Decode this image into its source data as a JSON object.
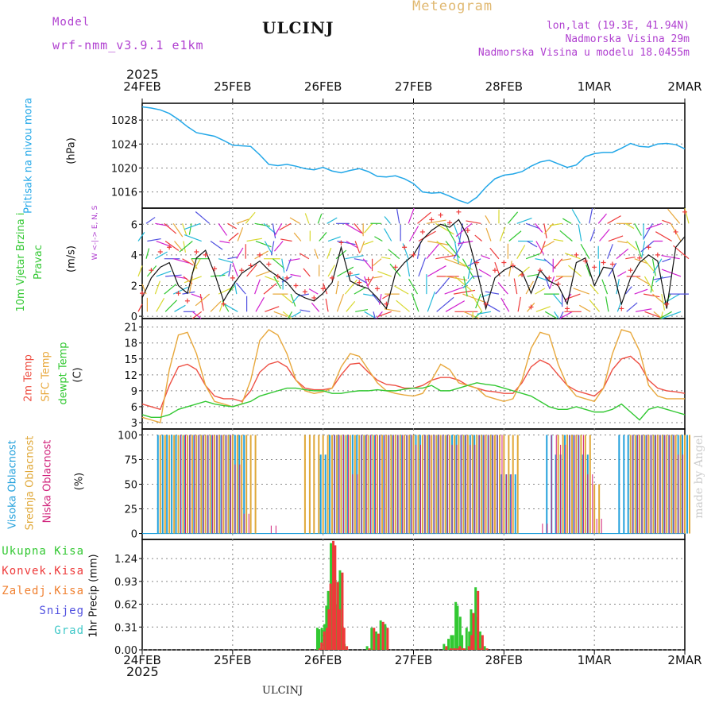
{
  "header": {
    "model_label": "Model",
    "model_name": "wrf-nmm_v3.9.1 e1km",
    "station": "ULCINJ",
    "title": "Meteogram",
    "lonlat": "lon,lat (19.3E, 41.94N)",
    "altitude": "Nadmorska Visina 29m",
    "model_altitude": "Nadmorska Visina u modelu 18.0455m",
    "bottom_station": "ULCINJ",
    "credit": "made by Angel"
  },
  "colors": {
    "pressure": "#22a7e8",
    "temp2m": "#ee5044",
    "sfc": "#e8a83c",
    "dewpt": "#32c832",
    "high_cloud": "#22a0dc",
    "mid_cloud": "#e0a838",
    "low_cloud": "#d0207a",
    "total_precip": "#32c832",
    "conv_precip": "#ee3a3a",
    "frozen_precip": "#f08030",
    "snow": "#5050e0",
    "graupel": "#40c8c8",
    "wind_label": "#32c832",
    "title": "#e0b870",
    "info": "#b040d0"
  },
  "time_axis": {
    "year": "2025",
    "labels": [
      "24FEB",
      "25FEB",
      "26FEB",
      "27FEB",
      "28FEB",
      "1MAR",
      "2MAR"
    ]
  },
  "chart_data": [
    {
      "type": "line",
      "name": "pressure",
      "ylabel_left": "Pritisak na nivou mora",
      "ylabel": "(hPa)",
      "yticks": [
        1016,
        1020,
        1024,
        1028
      ],
      "ylim": [
        1013.3,
        1030.8
      ],
      "grid": true,
      "x": [
        0,
        0.1,
        0.2,
        0.3,
        0.4,
        0.5,
        0.6,
        0.7,
        0.8,
        0.9,
        1.0,
        1.1,
        1.2,
        1.3,
        1.4,
        1.5,
        1.6,
        1.7,
        1.8,
        1.9,
        2.0,
        2.1,
        2.2,
        2.3,
        2.4,
        2.5,
        2.6,
        2.7,
        2.8,
        2.9,
        3.0,
        3.1,
        3.2,
        3.3,
        3.4,
        3.5,
        3.6,
        3.7,
        3.8,
        3.9,
        4.0,
        4.1,
        4.2,
        4.3,
        4.4,
        4.5,
        4.6,
        4.7,
        4.8,
        4.9,
        5.0,
        5.1,
        5.2,
        5.3,
        5.4,
        5.5,
        5.6,
        5.7,
        5.8,
        5.9,
        6.0
      ],
      "values": [
        1030.2,
        1030.0,
        1029.7,
        1029.1,
        1028.1,
        1026.9,
        1025.9,
        1025.6,
        1025.3,
        1024.6,
        1023.8,
        1023.7,
        1023.6,
        1022.2,
        1020.6,
        1020.4,
        1020.6,
        1020.3,
        1019.9,
        1019.7,
        1020.1,
        1019.5,
        1019.2,
        1019.6,
        1019.9,
        1019.4,
        1018.6,
        1018.5,
        1018.7,
        1018.2,
        1017.4,
        1016.0,
        1015.8,
        1015.9,
        1015.3,
        1014.6,
        1014.1,
        1015.1,
        1016.8,
        1018.2,
        1018.8,
        1019.0,
        1019.4,
        1020.3,
        1021.0,
        1021.3,
        1020.7,
        1020.1,
        1020.5,
        1021.9,
        1022.4,
        1022.6,
        1022.6,
        1023.3,
        1024.1,
        1023.6,
        1023.5,
        1024.0,
        1024.1,
        1023.9,
        1023.2
      ]
    },
    {
      "type": "scatter",
      "name": "wind",
      "ylabel_left": "10m Vjetar Brzina i Pravac",
      "ylabel": "(m/s)",
      "legend_glyphs": "W <-|-> E, N, S",
      "yticks": [
        0,
        2,
        4,
        6
      ],
      "ylim": [
        -0.15,
        7.05
      ],
      "grid": true,
      "x": [
        0,
        0.1,
        0.2,
        0.3,
        0.4,
        0.5,
        0.6,
        0.7,
        0.8,
        0.9,
        1.0,
        1.1,
        1.2,
        1.3,
        1.4,
        1.5,
        1.6,
        1.7,
        1.8,
        1.9,
        2.0,
        2.1,
        2.2,
        2.3,
        2.4,
        2.5,
        2.6,
        2.7,
        2.8,
        2.9,
        3.0,
        3.1,
        3.2,
        3.3,
        3.4,
        3.5,
        3.6,
        3.7,
        3.8,
        3.9,
        4.0,
        4.1,
        4.2,
        4.3,
        4.4,
        4.5,
        4.6,
        4.7,
        4.8,
        4.9,
        5.0,
        5.1,
        5.2,
        5.3,
        5.4,
        5.5,
        5.6,
        5.7,
        5.8,
        5.9,
        6.0
      ],
      "speed": [
        1.2,
        2.5,
        3.2,
        3.5,
        2.0,
        1.5,
        3.8,
        4.3,
        2.8,
        1.0,
        2.0,
        2.8,
        3.2,
        3.6,
        3.0,
        2.6,
        2.2,
        1.5,
        1.2,
        1.0,
        1.5,
        2.2,
        4.5,
        2.3,
        2.0,
        1.8,
        1.2,
        0.5,
        2.8,
        3.5,
        4.0,
        5.0,
        5.6,
        6.0,
        5.8,
        6.3,
        5.2,
        3.0,
        0.5,
        2.5,
        3.0,
        3.3,
        2.9,
        1.5,
        3.0,
        2.3,
        2.0,
        0.8,
        3.5,
        3.8,
        2.0,
        3.2,
        3.1,
        0.8,
        2.5,
        3.5,
        4.0,
        3.6,
        0.5,
        4.5,
        5.2
      ],
      "gust": [
        1.5,
        3.0,
        4.2,
        4.5,
        1.5,
        1.0,
        4.2,
        4.0,
        3.1,
        0.8,
        2.5,
        3.0,
        3.3,
        4.0,
        3.4,
        2.6,
        2.5,
        2.0,
        1.6,
        1.2,
        1.8,
        2.5,
        4.8,
        2.8,
        2.2,
        2.4,
        1.8,
        0.8,
        3.2,
        4.5,
        4.0,
        5.5,
        6.3,
        6.6,
        6.1,
        6.8,
        5.6,
        3.5,
        0.8,
        3.0,
        3.5,
        3.3,
        2.7,
        0.6,
        3.0,
        2.5,
        2.1,
        0.5,
        4.0,
        3.6,
        3.2,
        3.5,
        3.4,
        0.5,
        3.0,
        3.8,
        4.5,
        4.0,
        0.8,
        5.5,
        6.8
      ],
      "direction_deg": [
        315,
        0,
        30,
        45,
        60,
        90,
        150,
        210,
        45,
        20,
        330,
        300,
        0,
        30,
        70,
        110,
        140,
        200,
        240,
        280,
        320,
        350,
        20,
        40,
        80,
        120,
        170,
        220,
        250,
        280,
        310,
        340,
        20,
        50,
        60,
        90,
        130,
        180,
        230,
        260,
        300,
        330,
        10,
        40,
        70,
        120,
        160,
        200,
        230,
        270,
        300,
        320,
        350,
        20,
        50,
        80,
        110,
        150,
        190,
        220,
        250
      ]
    },
    {
      "type": "line",
      "name": "temperature",
      "ylabel_left": [
        "2m Temp",
        "SFC Temp",
        "dewpt Temp"
      ],
      "ylabel": "(C)",
      "yticks": [
        3,
        6,
        9,
        12,
        15,
        18,
        21
      ],
      "ylim": [
        1.8,
        22.6
      ],
      "grid": true,
      "x": [
        0,
        0.1,
        0.2,
        0.3,
        0.4,
        0.5,
        0.6,
        0.7,
        0.8,
        0.9,
        1.0,
        1.1,
        1.2,
        1.3,
        1.4,
        1.5,
        1.6,
        1.7,
        1.8,
        1.9,
        2.0,
        2.1,
        2.2,
        2.3,
        2.4,
        2.5,
        2.6,
        2.7,
        2.8,
        2.9,
        3.0,
        3.1,
        3.2,
        3.3,
        3.4,
        3.5,
        3.6,
        3.7,
        3.8,
        3.9,
        4.0,
        4.1,
        4.2,
        4.3,
        4.4,
        4.5,
        4.6,
        4.7,
        4.8,
        4.9,
        5.0,
        5.1,
        5.2,
        5.3,
        5.4,
        5.5,
        5.6,
        5.7,
        5.8,
        5.9,
        6.0
      ],
      "series": [
        {
          "name": "2m Temp",
          "color_key": "temp2m",
          "values": [
            6.5,
            6.0,
            5.5,
            10.0,
            13.5,
            14.0,
            13.0,
            10.0,
            8.0,
            7.5,
            7.5,
            7.0,
            9.0,
            12.5,
            14.0,
            14.5,
            13.5,
            11.0,
            9.5,
            9.2,
            9.2,
            9.5,
            12.0,
            14.0,
            14.2,
            12.5,
            11.0,
            10.2,
            10.0,
            9.5,
            9.5,
            10.0,
            11.0,
            11.5,
            11.5,
            11.0,
            10.0,
            9.5,
            9.0,
            8.8,
            8.5,
            8.5,
            10.5,
            13.5,
            14.8,
            14.0,
            12.0,
            10.0,
            9.0,
            8.5,
            8.0,
            9.5,
            13.0,
            15.0,
            15.5,
            14.0,
            11.0,
            9.5,
            9.0,
            8.8,
            8.5
          ]
        },
        {
          "name": "SFC Temp",
          "color_key": "sfc",
          "values": [
            4.0,
            3.5,
            3.0,
            13.0,
            19.5,
            20.0,
            16.0,
            10.0,
            7.0,
            6.5,
            6.0,
            6.5,
            11.0,
            18.5,
            20.5,
            19.5,
            16.0,
            11.0,
            9.0,
            8.5,
            8.8,
            9.5,
            13.5,
            16.0,
            15.5,
            13.0,
            10.5,
            9.0,
            8.5,
            8.2,
            8.0,
            8.5,
            11.0,
            14.0,
            13.0,
            10.5,
            10.0,
            9.5,
            8.0,
            7.5,
            7.0,
            7.5,
            11.0,
            17.0,
            20.0,
            19.5,
            14.0,
            10.0,
            8.0,
            7.5,
            7.0,
            9.5,
            16.0,
            20.5,
            20.0,
            16.5,
            10.0,
            8.0,
            7.5,
            7.5,
            7.5
          ]
        },
        {
          "name": "dewpt Temp",
          "color_key": "dewpt",
          "values": [
            4.5,
            4.0,
            4.0,
            4.5,
            5.5,
            6.0,
            6.5,
            7.0,
            6.5,
            6.2,
            6.0,
            6.5,
            7.0,
            8.0,
            8.5,
            9.0,
            9.5,
            9.5,
            9.2,
            9.0,
            9.0,
            8.5,
            8.5,
            8.8,
            9.0,
            9.0,
            9.2,
            9.0,
            9.0,
            9.3,
            9.5,
            9.5,
            10.0,
            9.0,
            9.0,
            9.5,
            10.0,
            10.5,
            10.2,
            10.0,
            9.5,
            9.0,
            8.5,
            8.0,
            7.0,
            6.0,
            5.5,
            5.5,
            6.0,
            5.5,
            5.0,
            5.0,
            5.5,
            6.5,
            5.0,
            3.5,
            5.5,
            6.0,
            5.5,
            5.0,
            4.5
          ]
        }
      ]
    },
    {
      "type": "bar",
      "name": "clouds",
      "ylabel_left": [
        "Visoka Oblacnost",
        "Srednja Oblacnost",
        "Niska Oblacnost"
      ],
      "ylabel": "(%)",
      "yticks": [
        0,
        25,
        50,
        75,
        100
      ],
      "ylim": [
        -6,
        106
      ],
      "grid": true,
      "x": [
        0,
        0.1,
        0.2,
        0.3,
        0.4,
        0.5,
        0.6,
        0.7,
        0.8,
        0.9,
        1.0,
        1.1,
        1.2,
        1.3,
        1.4,
        1.5,
        1.6,
        1.7,
        1.8,
        1.9,
        2.0,
        2.1,
        2.2,
        2.3,
        2.4,
        2.5,
        2.6,
        2.7,
        2.8,
        2.9,
        3.0,
        3.1,
        3.2,
        3.3,
        3.4,
        3.5,
        3.6,
        3.7,
        3.8,
        3.9,
        4.0,
        4.1,
        4.2,
        4.3,
        4.4,
        4.5,
        4.6,
        4.7,
        4.8,
        4.9,
        5.0,
        5.1,
        5.2,
        5.3,
        5.4,
        5.5,
        5.6,
        5.7,
        5.8,
        5.9,
        6.0
      ],
      "series": [
        {
          "name": "Visoka Oblacnost",
          "color_key": "high_cloud",
          "values": [
            0,
            0,
            100,
            100,
            100,
            100,
            100,
            100,
            100,
            100,
            100,
            100,
            0,
            0,
            0,
            0,
            0,
            0,
            0,
            0,
            80,
            100,
            100,
            100,
            100,
            100,
            100,
            100,
            100,
            100,
            100,
            100,
            100,
            100,
            100,
            100,
            100,
            100,
            100,
            100,
            60,
            60,
            0,
            0,
            0,
            100,
            80,
            100,
            100,
            80,
            0,
            0,
            0,
            100,
            100,
            100,
            100,
            100,
            100,
            100,
            100
          ]
        },
        {
          "name": "Srednja Oblacnost",
          "color_key": "mid_cloud",
          "values": [
            0,
            0,
            100,
            100,
            100,
            100,
            100,
            100,
            100,
            100,
            100,
            100,
            100,
            0,
            0,
            0,
            0,
            0,
            100,
            100,
            100,
            100,
            100,
            100,
            100,
            100,
            100,
            100,
            100,
            100,
            100,
            100,
            100,
            100,
            100,
            100,
            100,
            100,
            100,
            100,
            100,
            100,
            0,
            0,
            0,
            0,
            100,
            100,
            100,
            100,
            50,
            0,
            0,
            0,
            100,
            100,
            100,
            100,
            100,
            100,
            100
          ]
        },
        {
          "name": "Niska Oblacnost",
          "color_key": "low_cloud",
          "values": [
            0,
            0,
            0,
            0,
            100,
            100,
            100,
            100,
            100,
            100,
            70,
            20,
            0,
            0,
            8,
            0,
            0,
            0,
            0,
            0,
            0,
            100,
            100,
            60,
            100,
            100,
            100,
            100,
            100,
            100,
            90,
            100,
            100,
            100,
            90,
            100,
            90,
            100,
            100,
            100,
            60,
            0,
            0,
            0,
            10,
            100,
            90,
            100,
            100,
            60,
            15,
            0,
            0,
            0,
            100,
            100,
            100,
            100,
            100,
            80,
            0
          ]
        }
      ]
    },
    {
      "type": "bar",
      "name": "precipitation",
      "legend": [
        "Ukupna Kisa",
        "Konvek.Kisa",
        "Zaledj.Kisa",
        "Snijeg",
        "Grad"
      ],
      "ylabel": "1hr Precip (mm)",
      "yticks": [
        0,
        0.31,
        0.62,
        0.93,
        1.24
      ],
      "ylim": [
        0,
        1.5
      ],
      "grid": true,
      "x": [
        1.95,
        1.97,
        2.0,
        2.03,
        2.05,
        2.07,
        2.1,
        2.12,
        2.15,
        2.17,
        2.2,
        2.22,
        2.25,
        2.5,
        2.55,
        2.6,
        2.65,
        2.7,
        3.35,
        3.4,
        3.43,
        3.45,
        3.48,
        3.5,
        3.53,
        3.55,
        3.6,
        3.63,
        3.65,
        3.7,
        3.72,
        3.75,
        3.8
      ],
      "series": [
        {
          "name": "Ukupna Kisa",
          "color_key": "total_precip",
          "values": [
            0.3,
            0.28,
            0.3,
            0.35,
            0.6,
            0.8,
            1.45,
            1.4,
            0.95,
            0.62,
            1.08,
            0.32,
            0.08,
            0.05,
            0.3,
            0.25,
            0.4,
            0.35,
            0.08,
            0.15,
            0.2,
            0.2,
            0.65,
            0.6,
            0.45,
            0.2,
            0.3,
            0.25,
            0.55,
            0.85,
            0.45,
            0.25,
            0.05
          ]
        },
        {
          "name": "Konvek.Kisa",
          "color_key": "conv_precip",
          "values": [
            0.02,
            0.1,
            0.25,
            0.3,
            0.55,
            0.9,
            1.48,
            1.42,
            0.92,
            0.55,
            1.05,
            0.3,
            0.05,
            0.02,
            0.3,
            0.22,
            0.38,
            0.3,
            0.05,
            0.02,
            0.02,
            0.02,
            0.02,
            0.05,
            0.02,
            0.02,
            0.05,
            0.2,
            0.5,
            0.8,
            0.02,
            0.2,
            0.02
          ]
        }
      ]
    }
  ]
}
